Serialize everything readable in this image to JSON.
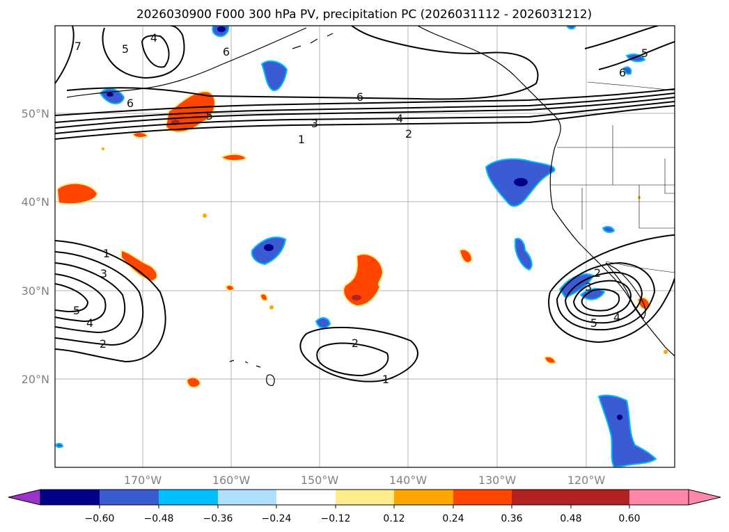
{
  "title": "2026030900 F000 300 hPa PV, precipitation PC (2026031112 - 2026031212)",
  "lat_labels": [
    "50°N",
    "40°N",
    "30°N",
    "20°N"
  ],
  "lon_labels": [
    "170°W",
    "160°W",
    "150°W",
    "140°W",
    "130°W",
    "120°W"
  ],
  "colorbar": {
    "ticks": [
      "−0.60",
      "−0.48",
      "−0.36",
      "−0.24",
      "−0.12",
      "0.12",
      "0.24",
      "0.36",
      "0.48",
      "0.60"
    ],
    "colors": [
      "#9933cc",
      "#00008b",
      "#3a5bd1",
      "#00bfff",
      "#b0e0ff",
      "#ffffff",
      "#ffec8b",
      "#ffa500",
      "#ff4500",
      "#b22222",
      "#ff88aa"
    ]
  },
  "contour_labels": [
    "7",
    "4",
    "5",
    "6",
    "6",
    "6",
    "5",
    "4",
    "3",
    "2",
    "1",
    "1",
    "3",
    "5",
    "4",
    "2",
    "2",
    "1",
    "2",
    "3",
    "5",
    "4",
    "6",
    "5"
  ],
  "colors": {
    "land_line": "#000000",
    "grid": "#b0b0b0",
    "contour": "#000000",
    "blue_dark": "#00008b",
    "blue": "#3a5bd1",
    "cyan": "#00bfff",
    "orange": "#ff4500",
    "orange_light": "#ffa500",
    "yellow": "#ffec8b",
    "brick": "#b22222"
  }
}
